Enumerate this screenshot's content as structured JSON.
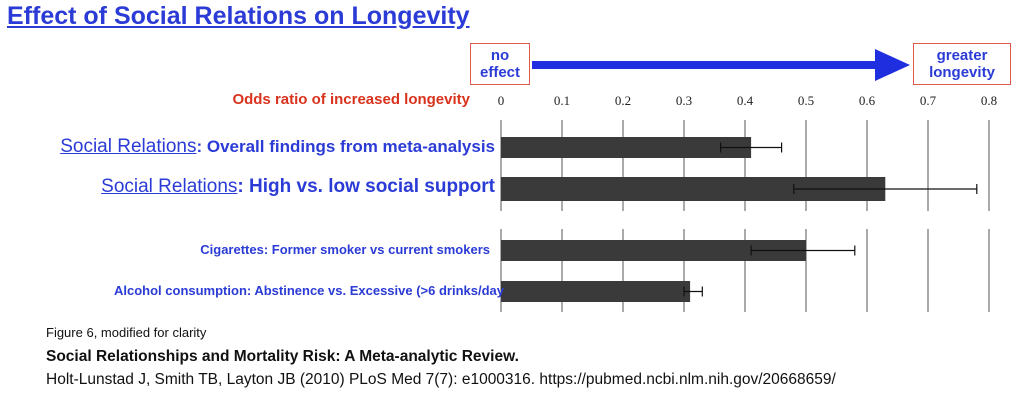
{
  "title": "Effect of Social Relations on Longevity",
  "arrow": {
    "left_label_line1": "no",
    "left_label_line2": "effect",
    "right_label_line1": "greater",
    "right_label_line2": "longevity",
    "color": "#1f2fe0",
    "box_border_color": "#e05a4a"
  },
  "chart_data": {
    "type": "bar",
    "orientation": "horizontal",
    "xlabel": "Odds ratio of increased longevity",
    "xlim": [
      0,
      0.8
    ],
    "xticks": [
      "0",
      "0.1",
      "0.2",
      "0.3",
      "0.4",
      "0.5",
      "0.6",
      "0.7",
      "0.8"
    ],
    "grid": true,
    "bar_color": "#3a3a3a",
    "categories": [
      {
        "prefix": "Social Relations",
        "rest": ": Overall findings from meta-analysis"
      },
      {
        "prefix": "Social Relations",
        "rest": ": High vs. low social support"
      },
      {
        "prefix": "",
        "rest": "Cigarettes: Former smoker vs current smokers"
      },
      {
        "prefix": "",
        "rest": "Alcohol consumption: Abstinence vs. Excessive (>6 drinks/day"
      }
    ],
    "values": [
      0.41,
      0.63,
      0.5,
      0.31
    ],
    "error_low": [
      0.36,
      0.48,
      0.41,
      0.3
    ],
    "error_high": [
      0.46,
      0.78,
      0.58,
      0.33
    ]
  },
  "footer": {
    "caption": "Figure 6, modified for clarity",
    "ref_title": "Social Relationships and Mortality Risk: A Meta-analytic Review.",
    "ref_line": "Holt-Lunstad J, Smith TB, Layton JB (2010)  PLoS Med 7(7): e1000316. https://pubmed.ncbi.nlm.nih.gov/20668659/"
  }
}
